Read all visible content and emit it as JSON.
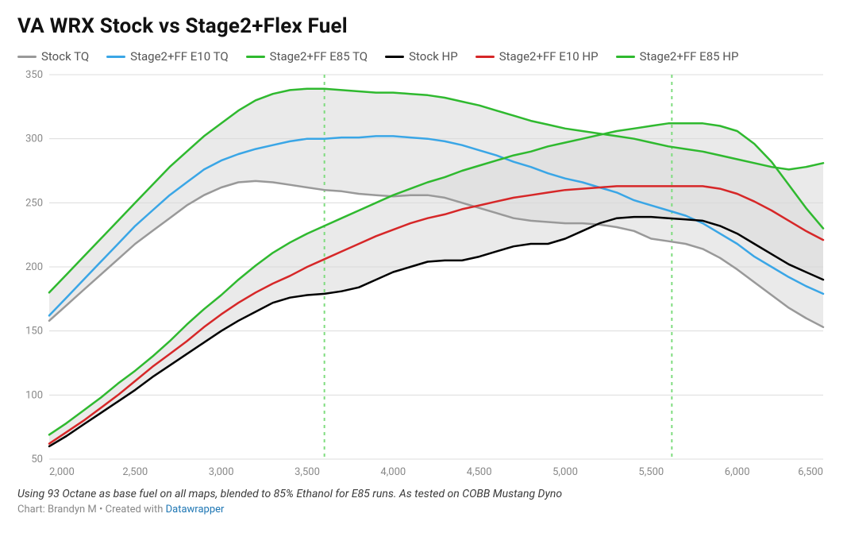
{
  "title": "VA WRX Stock vs Stage2+Flex Fuel",
  "caption": "Using 93 Octane as base fuel on all maps, blended to 85% Ethanol for E85 runs. As tested on COBB Mustang Dyno",
  "credit_prefix": "Chart: Brandyn M • Created with ",
  "credit_link_text": "Datawrapper",
  "chart": {
    "type": "line",
    "background_color": "#ffffff",
    "grid_color": "#dcdcdc",
    "xlim": [
      2000,
      6500
    ],
    "ylim": [
      50,
      350
    ],
    "xtick_step": 500,
    "ytick_step": 50,
    "xtick_labels": [
      "2,000",
      "2,500",
      "3,000",
      "3,500",
      "4,000",
      "4,500",
      "5,000",
      "5,500",
      "6,000",
      "6,500"
    ],
    "ytick_labels": [
      "50",
      "100",
      "150",
      "200",
      "250",
      "300",
      "350"
    ],
    "axis_label_color": "#888888",
    "axis_label_fontsize": 13,
    "vlines": [
      {
        "x": 3600,
        "color": "#7fdc7f"
      },
      {
        "x": 5620,
        "color": "#7fdc7f"
      }
    ],
    "area_bands": [
      {
        "upper": "e85_tq",
        "lower": "stock_tq",
        "fill": "#d9d9d9",
        "opacity": 0.55
      },
      {
        "upper": "e85_hp",
        "lower": "stock_hp",
        "fill": "#d9d9d9",
        "opacity": 0.55
      }
    ],
    "series": [
      {
        "id": "stock_tq",
        "label": "Stock TQ",
        "color": "#999999",
        "line_width": 2.5,
        "points": [
          [
            2000,
            158
          ],
          [
            2100,
            170
          ],
          [
            2200,
            182
          ],
          [
            2300,
            194
          ],
          [
            2400,
            206
          ],
          [
            2500,
            218
          ],
          [
            2600,
            228
          ],
          [
            2700,
            238
          ],
          [
            2800,
            248
          ],
          [
            2900,
            256
          ],
          [
            3000,
            262
          ],
          [
            3100,
            266
          ],
          [
            3200,
            267
          ],
          [
            3300,
            266
          ],
          [
            3400,
            264
          ],
          [
            3500,
            262
          ],
          [
            3600,
            260
          ],
          [
            3700,
            259
          ],
          [
            3800,
            257
          ],
          [
            3900,
            256
          ],
          [
            4000,
            255
          ],
          [
            4100,
            256
          ],
          [
            4200,
            256
          ],
          [
            4300,
            254
          ],
          [
            4400,
            250
          ],
          [
            4500,
            246
          ],
          [
            4600,
            242
          ],
          [
            4700,
            238
          ],
          [
            4800,
            236
          ],
          [
            4900,
            235
          ],
          [
            5000,
            234
          ],
          [
            5100,
            234
          ],
          [
            5200,
            233
          ],
          [
            5300,
            231
          ],
          [
            5400,
            228
          ],
          [
            5500,
            222
          ],
          [
            5600,
            220
          ],
          [
            5700,
            218
          ],
          [
            5800,
            214
          ],
          [
            5900,
            207
          ],
          [
            6000,
            198
          ],
          [
            6100,
            188
          ],
          [
            6200,
            178
          ],
          [
            6300,
            168
          ],
          [
            6400,
            160
          ],
          [
            6500,
            153
          ]
        ]
      },
      {
        "id": "e10_tq",
        "label": "Stage2+FF E10 TQ",
        "color": "#3aa6e6",
        "line_width": 2.5,
        "points": [
          [
            2000,
            162
          ],
          [
            2100,
            176
          ],
          [
            2200,
            190
          ],
          [
            2300,
            204
          ],
          [
            2400,
            218
          ],
          [
            2500,
            232
          ],
          [
            2600,
            244
          ],
          [
            2700,
            256
          ],
          [
            2800,
            266
          ],
          [
            2900,
            276
          ],
          [
            3000,
            283
          ],
          [
            3100,
            288
          ],
          [
            3200,
            292
          ],
          [
            3300,
            295
          ],
          [
            3400,
            298
          ],
          [
            3500,
            300
          ],
          [
            3600,
            300
          ],
          [
            3700,
            301
          ],
          [
            3800,
            301
          ],
          [
            3900,
            302
          ],
          [
            4000,
            302
          ],
          [
            4100,
            301
          ],
          [
            4200,
            300
          ],
          [
            4300,
            298
          ],
          [
            4400,
            295
          ],
          [
            4500,
            291
          ],
          [
            4600,
            287
          ],
          [
            4700,
            282
          ],
          [
            4800,
            278
          ],
          [
            4900,
            273
          ],
          [
            5000,
            269
          ],
          [
            5100,
            266
          ],
          [
            5200,
            262
          ],
          [
            5300,
            258
          ],
          [
            5400,
            252
          ],
          [
            5500,
            248
          ],
          [
            5600,
            244
          ],
          [
            5700,
            240
          ],
          [
            5800,
            234
          ],
          [
            5900,
            226
          ],
          [
            6000,
            218
          ],
          [
            6100,
            208
          ],
          [
            6200,
            200
          ],
          [
            6300,
            192
          ],
          [
            6400,
            185
          ],
          [
            6500,
            179
          ]
        ]
      },
      {
        "id": "e85_tq",
        "label": "Stage2+FF E85 TQ",
        "color": "#2fb92f",
        "line_width": 2.5,
        "points": [
          [
            2000,
            180
          ],
          [
            2100,
            194
          ],
          [
            2200,
            208
          ],
          [
            2300,
            222
          ],
          [
            2400,
            236
          ],
          [
            2500,
            250
          ],
          [
            2600,
            264
          ],
          [
            2700,
            278
          ],
          [
            2800,
            290
          ],
          [
            2900,
            302
          ],
          [
            3000,
            312
          ],
          [
            3100,
            322
          ],
          [
            3200,
            330
          ],
          [
            3300,
            335
          ],
          [
            3400,
            338
          ],
          [
            3500,
            339
          ],
          [
            3600,
            339
          ],
          [
            3700,
            338
          ],
          [
            3800,
            337
          ],
          [
            3900,
            336
          ],
          [
            4000,
            336
          ],
          [
            4100,
            335
          ],
          [
            4200,
            334
          ],
          [
            4300,
            332
          ],
          [
            4400,
            329
          ],
          [
            4500,
            326
          ],
          [
            4600,
            322
          ],
          [
            4700,
            318
          ],
          [
            4800,
            314
          ],
          [
            4900,
            311
          ],
          [
            5000,
            308
          ],
          [
            5100,
            306
          ],
          [
            5200,
            304
          ],
          [
            5300,
            302
          ],
          [
            5400,
            300
          ],
          [
            5500,
            297
          ],
          [
            5600,
            294
          ],
          [
            5700,
            292
          ],
          [
            5800,
            290
          ],
          [
            5900,
            287
          ],
          [
            6000,
            284
          ],
          [
            6100,
            281
          ],
          [
            6200,
            278
          ],
          [
            6300,
            276
          ],
          [
            6400,
            278
          ],
          [
            6500,
            281
          ]
        ]
      },
      {
        "id": "stock_hp",
        "label": "Stock HP",
        "color": "#000000",
        "line_width": 2.5,
        "points": [
          [
            2000,
            60
          ],
          [
            2100,
            68
          ],
          [
            2200,
            77
          ],
          [
            2300,
            86
          ],
          [
            2400,
            95
          ],
          [
            2500,
            104
          ],
          [
            2600,
            114
          ],
          [
            2700,
            123
          ],
          [
            2800,
            132
          ],
          [
            2900,
            141
          ],
          [
            3000,
            150
          ],
          [
            3100,
            158
          ],
          [
            3200,
            165
          ],
          [
            3300,
            172
          ],
          [
            3400,
            176
          ],
          [
            3500,
            178
          ],
          [
            3600,
            179
          ],
          [
            3700,
            181
          ],
          [
            3800,
            184
          ],
          [
            3900,
            190
          ],
          [
            4000,
            196
          ],
          [
            4100,
            200
          ],
          [
            4200,
            204
          ],
          [
            4300,
            205
          ],
          [
            4400,
            205
          ],
          [
            4500,
            208
          ],
          [
            4600,
            212
          ],
          [
            4700,
            216
          ],
          [
            4800,
            218
          ],
          [
            4900,
            218
          ],
          [
            5000,
            222
          ],
          [
            5100,
            228
          ],
          [
            5200,
            234
          ],
          [
            5300,
            238
          ],
          [
            5400,
            239
          ],
          [
            5500,
            239
          ],
          [
            5600,
            238
          ],
          [
            5700,
            237
          ],
          [
            5800,
            236
          ],
          [
            5900,
            232
          ],
          [
            6000,
            226
          ],
          [
            6100,
            218
          ],
          [
            6200,
            210
          ],
          [
            6300,
            202
          ],
          [
            6400,
            196
          ],
          [
            6500,
            190
          ]
        ]
      },
      {
        "id": "e10_hp",
        "label": "Stage2+FF E10 HP",
        "color": "#d62728",
        "line_width": 2.5,
        "points": [
          [
            2000,
            62
          ],
          [
            2100,
            71
          ],
          [
            2200,
            80
          ],
          [
            2300,
            90
          ],
          [
            2400,
            100
          ],
          [
            2500,
            111
          ],
          [
            2600,
            122
          ],
          [
            2700,
            132
          ],
          [
            2800,
            142
          ],
          [
            2900,
            153
          ],
          [
            3000,
            163
          ],
          [
            3100,
            172
          ],
          [
            3200,
            180
          ],
          [
            3300,
            187
          ],
          [
            3400,
            193
          ],
          [
            3500,
            200
          ],
          [
            3600,
            206
          ],
          [
            3700,
            212
          ],
          [
            3800,
            218
          ],
          [
            3900,
            224
          ],
          [
            4000,
            229
          ],
          [
            4100,
            234
          ],
          [
            4200,
            238
          ],
          [
            4300,
            241
          ],
          [
            4400,
            245
          ],
          [
            4500,
            248
          ],
          [
            4600,
            251
          ],
          [
            4700,
            254
          ],
          [
            4800,
            256
          ],
          [
            4900,
            258
          ],
          [
            5000,
            260
          ],
          [
            5100,
            261
          ],
          [
            5200,
            262
          ],
          [
            5300,
            263
          ],
          [
            5400,
            263
          ],
          [
            5500,
            263
          ],
          [
            5600,
            263
          ],
          [
            5700,
            263
          ],
          [
            5800,
            263
          ],
          [
            5900,
            261
          ],
          [
            6000,
            257
          ],
          [
            6100,
            251
          ],
          [
            6200,
            244
          ],
          [
            6300,
            236
          ],
          [
            6400,
            228
          ],
          [
            6500,
            221
          ]
        ]
      },
      {
        "id": "e85_hp",
        "label": "Stage2+FF E85 HP",
        "color": "#2fb92f",
        "line_width": 2.5,
        "points": [
          [
            2000,
            69
          ],
          [
            2100,
            78
          ],
          [
            2200,
            88
          ],
          [
            2300,
            98
          ],
          [
            2400,
            109
          ],
          [
            2500,
            119
          ],
          [
            2600,
            130
          ],
          [
            2700,
            142
          ],
          [
            2800,
            155
          ],
          [
            2900,
            167
          ],
          [
            3000,
            178
          ],
          [
            3100,
            190
          ],
          [
            3200,
            201
          ],
          [
            3300,
            211
          ],
          [
            3400,
            219
          ],
          [
            3500,
            226
          ],
          [
            3600,
            232
          ],
          [
            3700,
            238
          ],
          [
            3800,
            244
          ],
          [
            3900,
            250
          ],
          [
            4000,
            256
          ],
          [
            4100,
            261
          ],
          [
            4200,
            266
          ],
          [
            4300,
            270
          ],
          [
            4400,
            275
          ],
          [
            4500,
            279
          ],
          [
            4600,
            283
          ],
          [
            4700,
            287
          ],
          [
            4800,
            290
          ],
          [
            4900,
            294
          ],
          [
            5000,
            297
          ],
          [
            5100,
            300
          ],
          [
            5200,
            303
          ],
          [
            5300,
            306
          ],
          [
            5400,
            308
          ],
          [
            5500,
            310
          ],
          [
            5600,
            312
          ],
          [
            5700,
            312
          ],
          [
            5800,
            312
          ],
          [
            5900,
            310
          ],
          [
            6000,
            306
          ],
          [
            6100,
            296
          ],
          [
            6200,
            282
          ],
          [
            6300,
            264
          ],
          [
            6400,
            246
          ],
          [
            6500,
            230
          ]
        ]
      }
    ]
  }
}
